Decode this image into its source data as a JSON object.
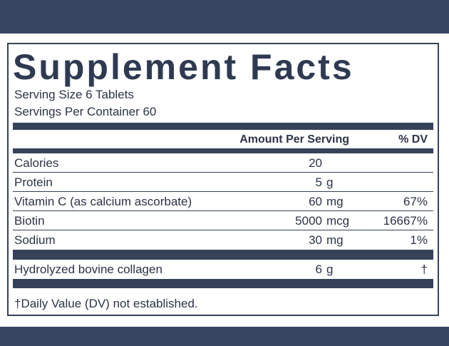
{
  "title": "Supplement Facts",
  "serving_size": "Serving Size 6 Tablets",
  "servings_per_container": "Servings Per Container 60",
  "header": {
    "amount": "Amount Per Serving",
    "dv": "% DV"
  },
  "groups": [
    [
      {
        "name": "Calories",
        "amount": 20,
        "unit": "",
        "dv": ""
      },
      {
        "name": "Protein",
        "amount": 5,
        "unit": "g",
        "dv": ""
      },
      {
        "name": "Vitamin C (as calcium ascorbate)",
        "amount": 60,
        "unit": "mg",
        "dv": "67%"
      },
      {
        "name": "Biotin",
        "amount": 5000,
        "unit": "mcg",
        "dv": "16667%"
      },
      {
        "name": "Sodium",
        "amount": 30,
        "unit": "mg",
        "dv": "1%"
      }
    ],
    [
      {
        "name": "Hydrolyzed bovine collagen",
        "amount": 6,
        "unit": "g",
        "dv": "†"
      }
    ]
  ],
  "footnote": "†Daily Value (DV) not established."
}
